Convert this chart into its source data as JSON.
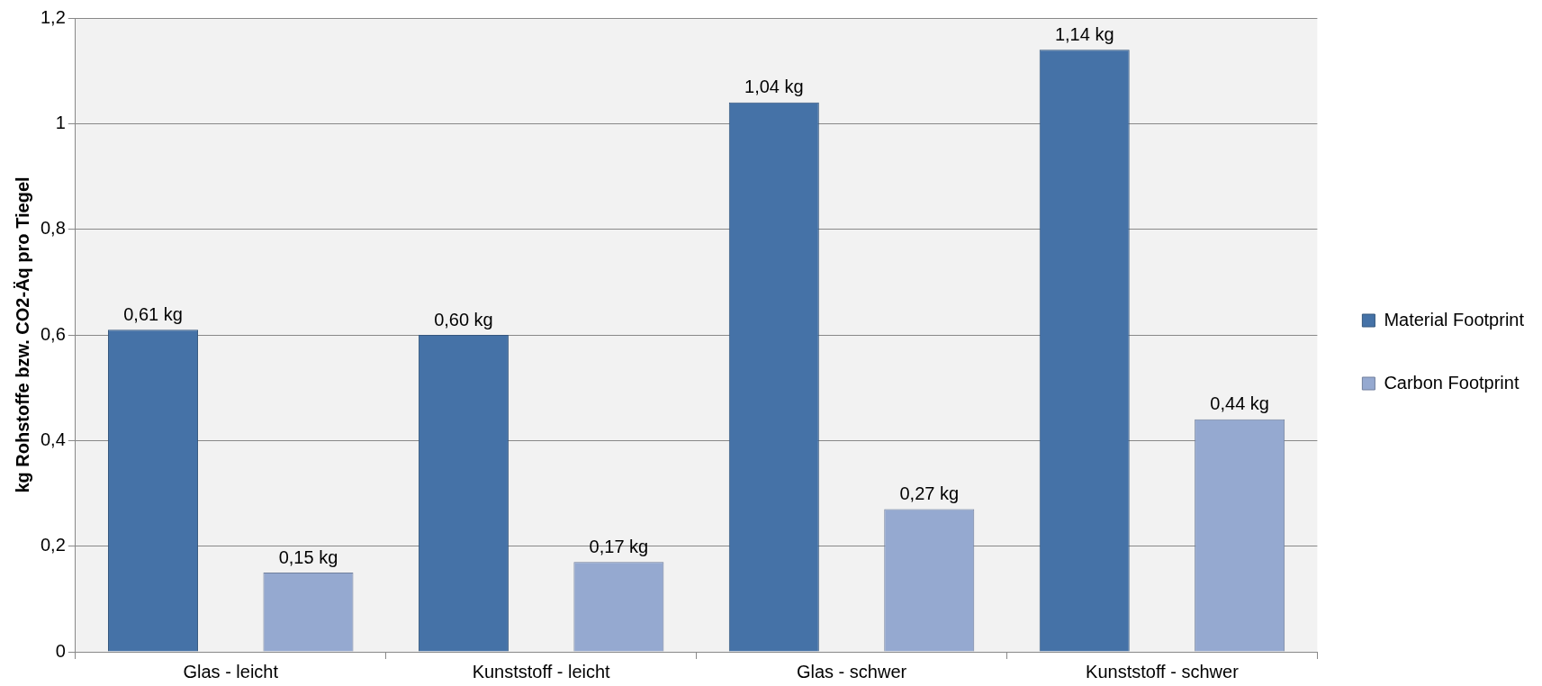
{
  "chart_data": {
    "type": "bar",
    "ylabel": "kg Rohstoffe bzw. CO2-Äq pro Tiegel",
    "categories": [
      "Glas - leicht",
      "Kunststoff - leicht",
      "Glas - schwer",
      "Kunststoff - schwer"
    ],
    "series": [
      {
        "name": "Material Footprint",
        "color": "#4572a7",
        "values": [
          0.61,
          0.6,
          1.04,
          1.14
        ],
        "value_labels": [
          "0,61 kg",
          "0,60 kg",
          "1,04 kg",
          "1,14 kg"
        ]
      },
      {
        "name": "Carbon Footprint",
        "color": "#95a9d0",
        "values": [
          0.15,
          0.17,
          0.27,
          0.44
        ],
        "value_labels": [
          "0,15 kg",
          "0,17 kg",
          "0,27 kg",
          "0,44 kg"
        ]
      }
    ],
    "ylim": [
      0,
      1.2
    ],
    "yticks": [
      0,
      {
        "value": 0.2,
        "label": "0,2"
      },
      {
        "value": 0.4,
        "label": "0,4"
      },
      {
        "value": 0.6,
        "label": "0,6"
      },
      {
        "value": 0.8,
        "label": "0,8"
      },
      1,
      {
        "value": 1.2,
        "label": "1,2"
      }
    ],
    "grid": "y",
    "legend": "right"
  }
}
